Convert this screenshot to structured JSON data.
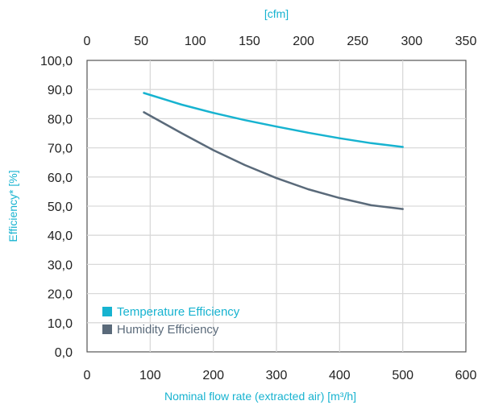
{
  "chart_data": {
    "type": "line",
    "x_top_label": "[cfm]",
    "xlabel": "Nominal flow rate (extracted air) [m³/h]",
    "ylabel": "Efficiency* [%]",
    "xlim": [
      0,
      600
    ],
    "ylim": [
      0,
      100
    ],
    "x_ticks": [
      "0",
      "100",
      "200",
      "300",
      "400",
      "500",
      "600"
    ],
    "x_top_ticks": [
      "0",
      "50",
      "100",
      "150",
      "200",
      "250",
      "300",
      "350"
    ],
    "y_ticks": [
      "0,0",
      "10,0",
      "20,0",
      "30,0",
      "40,0",
      "50,0",
      "60,0",
      "70,0",
      "80,0",
      "90,0",
      "100,0"
    ],
    "grid": true,
    "legend_position": "bottom-left",
    "series": [
      {
        "name": "Temperature Efficiency",
        "color": "#17b3d0",
        "x": [
          90,
          150,
          200,
          250,
          300,
          350,
          400,
          450,
          500
        ],
        "y": [
          88.8,
          84.8,
          82.0,
          79.5,
          77.3,
          75.2,
          73.3,
          71.6,
          70.3
        ]
      },
      {
        "name": "Humidity Efficiency",
        "color": "#5a6a7a",
        "x": [
          90,
          150,
          200,
          250,
          300,
          350,
          400,
          450,
          500
        ],
        "y": [
          82.2,
          75.0,
          69.2,
          64.1,
          59.6,
          55.8,
          52.8,
          50.3,
          49.0
        ]
      }
    ]
  },
  "colors": {
    "axis_title": "#17b3d0",
    "grid": "#d9d9d9",
    "frame": "#555555"
  }
}
